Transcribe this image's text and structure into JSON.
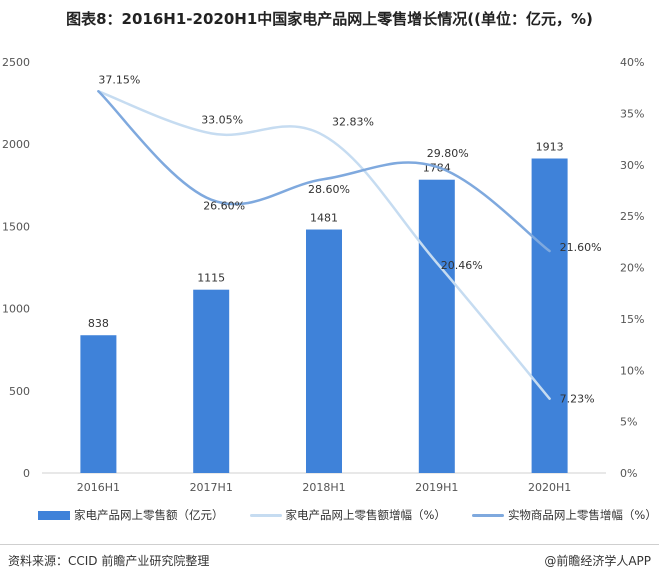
{
  "title": "图表8：2016H1-2020H1中国家电产品网上零售增长情况((单位：亿元，%)",
  "footer": {
    "source": "资料来源：CCID 前瞻产业研究院整理",
    "brand": "@前瞻经济学人APP"
  },
  "colors": {
    "bar": "#3f82d9",
    "line_sales_growth": "#c6dcf1",
    "line_physical_growth": "#7fa9de"
  },
  "chart_data": {
    "type": "bar",
    "categories": [
      "2016H1",
      "2017H1",
      "2018H1",
      "2019H1",
      "2020H1"
    ],
    "left_axis": {
      "min": 0,
      "max": 2500,
      "ticks": [
        0,
        500,
        1000,
        1500,
        2000,
        2500
      ]
    },
    "right_axis": {
      "min": 0,
      "max": 40,
      "ticks": [
        "0%",
        "5%",
        "10%",
        "15%",
        "20%",
        "25%",
        "30%",
        "35%",
        "40%"
      ]
    },
    "series": [
      {
        "name": "家电产品网上零售额（亿元）",
        "type": "bar",
        "axis": "left",
        "values": [
          838,
          1115,
          1481,
          1784,
          1913
        ],
        "labels": [
          "838",
          "1115",
          "1481",
          "1784",
          "1913"
        ]
      },
      {
        "name": "家电产品网上零售额增幅（%）",
        "type": "line",
        "axis": "right",
        "values": [
          37.15,
          33.05,
          32.83,
          20.46,
          7.23
        ],
        "labels": [
          "37.15%",
          "33.05%",
          "32.83%",
          "20.46%",
          "7.23%"
        ]
      },
      {
        "name": "实物商品网上零售增幅（%）",
        "type": "line",
        "axis": "right",
        "values": [
          37.15,
          26.6,
          28.6,
          29.8,
          21.6
        ],
        "labels": [
          "",
          "26.60%",
          "28.60%",
          "29.80%",
          "21.60%"
        ]
      }
    ],
    "grid": false,
    "legend": "bottom"
  }
}
